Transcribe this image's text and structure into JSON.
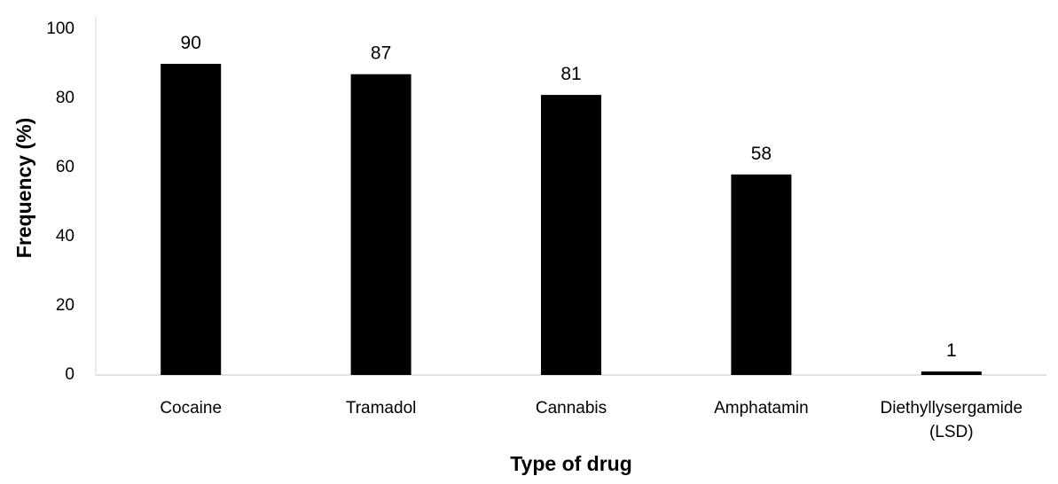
{
  "chart_data": {
    "type": "bar",
    "categories": [
      "Cocaine",
      "Tramadol",
      "Cannabis",
      "Amphatamin",
      "Diethyllysergamide (LSD)"
    ],
    "category_lines": [
      [
        "Cocaine"
      ],
      [
        "Tramadol"
      ],
      [
        "Cannabis"
      ],
      [
        "Amphatamin"
      ],
      [
        "Diethyllysergamide",
        "(LSD)"
      ]
    ],
    "values": [
      90,
      87,
      81,
      58,
      1
    ],
    "data_labels": [
      "90",
      "87",
      "81",
      "58",
      "1"
    ],
    "xlabel": "Type of drug",
    "ylabel": "Frequency (%)",
    "ylim": [
      0,
      100
    ],
    "yticks": [
      0,
      20,
      40,
      60,
      80,
      100
    ],
    "ytick_labels": [
      "0",
      "20",
      "40",
      "60",
      "80",
      "100"
    ],
    "grid": false,
    "legend": "none",
    "bar_color": "#000000"
  }
}
